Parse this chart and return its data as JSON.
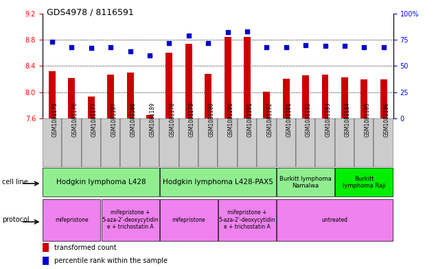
{
  "title": "GDS4978 / 8116591",
  "samples": [
    "GSM1081175",
    "GSM1081176",
    "GSM1081177",
    "GSM1081187",
    "GSM1081188",
    "GSM1081189",
    "GSM1081178",
    "GSM1081179",
    "GSM1081180",
    "GSM1081190",
    "GSM1081191",
    "GSM1081192",
    "GSM1081181",
    "GSM1081182",
    "GSM1081183",
    "GSM1081184",
    "GSM1081185",
    "GSM1081186"
  ],
  "transformed_count": [
    8.32,
    8.22,
    7.93,
    8.27,
    8.3,
    7.65,
    8.6,
    8.74,
    8.28,
    8.84,
    8.84,
    8.01,
    8.2,
    8.26,
    8.27,
    8.23,
    8.19,
    8.19
  ],
  "percentile_rank": [
    73,
    68,
    67,
    68,
    64,
    60,
    72,
    79,
    72,
    82,
    83,
    68,
    68,
    70,
    69,
    69,
    68,
    68
  ],
  "ylim_left": [
    7.6,
    9.2
  ],
  "ylim_right": [
    0,
    100
  ],
  "yticks_left": [
    7.6,
    8.0,
    8.4,
    8.8,
    9.2
  ],
  "yticks_right": [
    0,
    25,
    50,
    75,
    100
  ],
  "bar_color": "#cc0000",
  "dot_color": "#0000cc",
  "cell_line_color": "#90ee90",
  "cell_line_raji_color": "#00ee00",
  "protocol_color": "#ee82ee",
  "sample_bg_color": "#cccccc",
  "cell_lines": [
    {
      "label": "Hodgkin lymphoma L428",
      "start": 0,
      "end": 6
    },
    {
      "label": "Hodgkin lymphoma L428-PAX5",
      "start": 6,
      "end": 12
    },
    {
      "label": "Burkitt lymphoma\nNamalwa",
      "start": 12,
      "end": 15
    },
    {
      "label": "Burkitt\nlymphoma Raji",
      "start": 15,
      "end": 18
    }
  ],
  "protocols": [
    {
      "label": "mifepristone",
      "start": 0,
      "end": 3
    },
    {
      "label": "mifepristone +\n5-aza-2'-deoxycytidin\ne + trichostatin A",
      "start": 3,
      "end": 6
    },
    {
      "label": "mifepristone",
      "start": 6,
      "end": 9
    },
    {
      "label": "mifepristone +\n5-aza-2'-deoxycytidin\ne + trichostatin A",
      "start": 9,
      "end": 12
    },
    {
      "label": "untreated",
      "start": 12,
      "end": 18
    }
  ],
  "legend_items": [
    {
      "color": "#cc0000",
      "label": "transformed count"
    },
    {
      "color": "#0000cc",
      "label": "percentile rank within the sample"
    }
  ]
}
